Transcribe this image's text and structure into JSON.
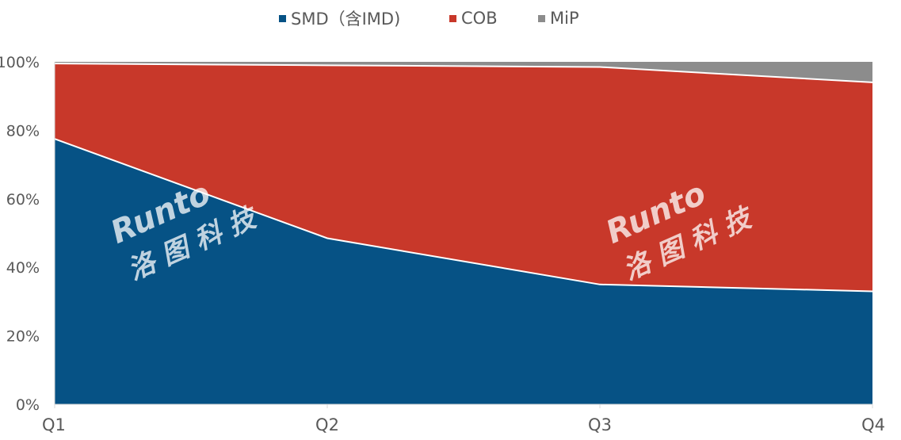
{
  "chart_data": {
    "type": "area",
    "stacked": true,
    "percent": true,
    "categories": [
      "Q1",
      "Q2",
      "Q3",
      "Q4"
    ],
    "series": [
      {
        "name": "SMD（含IMD)",
        "color": "#065285",
        "values": [
          77.5,
          48.5,
          35.0,
          33.0
        ]
      },
      {
        "name": "COB",
        "color": "#c8382a",
        "values": [
          22.0,
          50.5,
          63.5,
          61.0
        ]
      },
      {
        "name": "MiP",
        "color": "#8c8c8c",
        "values": [
          0.5,
          1.0,
          1.5,
          6.0
        ]
      }
    ],
    "yticks": [
      "0%",
      "20%",
      "40%",
      "60%",
      "80%",
      "100%"
    ],
    "ylim": [
      0,
      100
    ],
    "legend_position": "top",
    "grid": false
  },
  "watermark": {
    "logo_text": "Runto",
    "chinese_text": "洛 图 科 技"
  }
}
